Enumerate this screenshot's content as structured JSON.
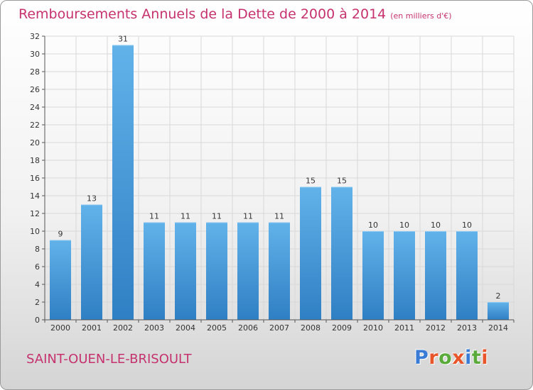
{
  "header": {
    "title": "Remboursements Annuels de la Dette de 2000 à 2014",
    "subtitle": "(en milliers d'€)"
  },
  "footer": {
    "location": "SAINT-OUEN-LE-BRISOULT",
    "logo": "Proxiti"
  },
  "colors": {
    "accent": "#c5326e",
    "bar_light": "#62b2ea",
    "bar_dark": "#2f7fc4",
    "grid": "#d8d8d8",
    "axis": "#555555",
    "logo_letters": [
      "#3a7bd5",
      "#e8552a",
      "#5aab3c",
      "#e8552a",
      "#3a7bd5",
      "#5aab3c",
      "#e8552a"
    ]
  },
  "chart_data": {
    "type": "bar",
    "title": "Remboursements Annuels de la Dette de 2000 à 2014",
    "subtitle": "(en milliers d'€)",
    "xlabel": "",
    "ylabel": "",
    "categories": [
      "2000",
      "2001",
      "2002",
      "2003",
      "2004",
      "2005",
      "2006",
      "2007",
      "2008",
      "2009",
      "2010",
      "2011",
      "2012",
      "2013",
      "2014"
    ],
    "values": [
      9,
      13,
      31,
      11,
      11,
      11,
      11,
      11,
      15,
      15,
      10,
      10,
      10,
      10,
      2
    ],
    "ylim": [
      0,
      32
    ],
    "yticks": [
      0,
      2,
      4,
      6,
      8,
      10,
      12,
      14,
      16,
      18,
      20,
      22,
      24,
      26,
      28,
      30,
      32
    ],
    "grid": true,
    "legend": "none"
  }
}
